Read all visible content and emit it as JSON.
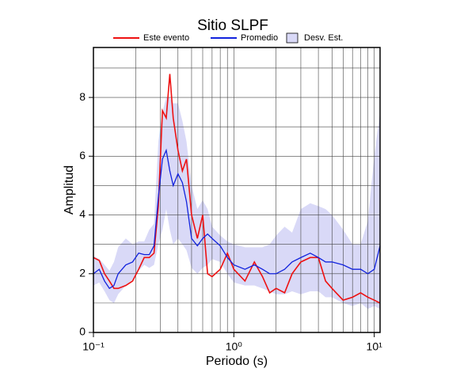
{
  "chart_data": {
    "type": "line",
    "title": "Sitio SLPF",
    "x_label": "Periodo (s)",
    "y_label": "Amplitud",
    "x_scale": "log",
    "xlim": [
      0.1,
      11
    ],
    "ylim": [
      0,
      9.7
    ],
    "xticks": [
      {
        "value": 0.1,
        "label": "10⁻¹"
      },
      {
        "value": 1,
        "label": "10⁰"
      },
      {
        "value": 10,
        "label": "10¹"
      }
    ],
    "xgrid": [
      0.2,
      0.3,
      0.4,
      0.5,
      0.6,
      0.7,
      0.8,
      0.9,
      1,
      2,
      3,
      4,
      5,
      6,
      7,
      8,
      9,
      10
    ],
    "yticks": [
      0,
      2,
      4,
      6,
      8
    ],
    "ygrid": [
      1,
      2,
      3,
      4,
      5,
      6,
      7,
      8,
      9
    ],
    "grid": true,
    "x": [
      0.1,
      0.11,
      0.12,
      0.13,
      0.14,
      0.15,
      0.17,
      0.19,
      0.21,
      0.23,
      0.25,
      0.27,
      0.29,
      0.31,
      0.33,
      0.35,
      0.37,
      0.4,
      0.43,
      0.46,
      0.5,
      0.55,
      0.6,
      0.65,
      0.7,
      0.8,
      0.9,
      1.0,
      1.2,
      1.4,
      1.6,
      1.8,
      2.0,
      2.3,
      2.6,
      3.0,
      3.5,
      4.0,
      4.5,
      5,
      6,
      7,
      8,
      9,
      10,
      11
    ],
    "bands": [
      {
        "name": "Desv. Est.",
        "color": "#d9d9f7",
        "upper": [
          2.6,
          2.5,
          2.3,
          2.1,
          2.4,
          2.9,
          3.2,
          3.0,
          3.1,
          3.1,
          3.5,
          3.7,
          6.5,
          7.5,
          8.0,
          8.0,
          7.8,
          7.8,
          7.2,
          6.5,
          5.0,
          4.2,
          4.5,
          4.2,
          3.6,
          3.3,
          3.1,
          3.0,
          2.9,
          2.9,
          2.9,
          3.0,
          3.3,
          3.6,
          3.4,
          4.2,
          4.4,
          4.3,
          4.2,
          4.0,
          3.5,
          3.0,
          3.0,
          3.8,
          6.0,
          7.5
        ],
        "lower": [
          1.6,
          1.7,
          1.4,
          1.1,
          1.0,
          1.3,
          1.6,
          1.8,
          2.1,
          2.3,
          2.2,
          2.3,
          3.0,
          3.5,
          4.2,
          3.5,
          3.0,
          3.2,
          3.0,
          2.8,
          2.2,
          2.0,
          2.2,
          2.3,
          2.5,
          2.4,
          2.0,
          1.7,
          1.6,
          1.6,
          1.5,
          1.4,
          1.3,
          1.3,
          1.4,
          1.3,
          1.4,
          1.4,
          1.2,
          1.2,
          1.0,
          0.9,
          1.0,
          0.8,
          0.9,
          0.8
        ]
      }
    ],
    "series": [
      {
        "name": "Este evento",
        "color": "#ee1111",
        "values": [
          2.55,
          2.45,
          2.0,
          1.75,
          1.5,
          1.5,
          1.6,
          1.75,
          2.15,
          2.55,
          2.55,
          2.7,
          4.3,
          7.55,
          7.3,
          8.8,
          7.3,
          6.2,
          5.5,
          5.9,
          4.0,
          3.2,
          4.0,
          2.0,
          1.9,
          2.15,
          2.7,
          2.15,
          1.75,
          2.4,
          1.9,
          1.35,
          1.5,
          1.35,
          2.0,
          2.4,
          2.55,
          2.55,
          1.75,
          1.5,
          1.1,
          1.2,
          1.35,
          1.2,
          1.1,
          1.0
        ]
      },
      {
        "name": "Promedio",
        "color": "#1122dd",
        "values": [
          2.0,
          2.15,
          1.75,
          1.5,
          1.6,
          2.0,
          2.3,
          2.4,
          2.7,
          2.65,
          2.65,
          2.95,
          4.6,
          5.9,
          6.2,
          5.5,
          5.0,
          5.4,
          5.1,
          4.45,
          3.2,
          2.95,
          3.2,
          3.35,
          3.2,
          2.95,
          2.55,
          2.3,
          2.15,
          2.3,
          2.15,
          2.0,
          2.0,
          2.15,
          2.4,
          2.55,
          2.7,
          2.55,
          2.4,
          2.4,
          2.3,
          2.15,
          2.15,
          2.0,
          2.15,
          2.95
        ]
      }
    ]
  }
}
